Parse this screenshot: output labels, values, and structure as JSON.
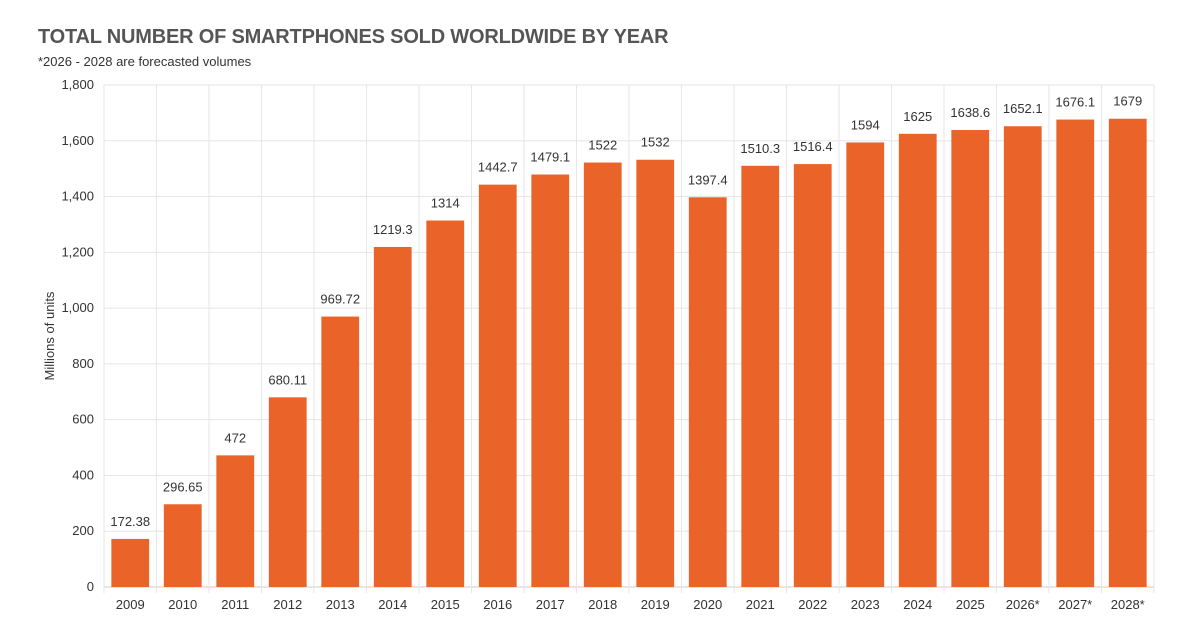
{
  "chart_data": {
    "type": "bar",
    "title": "TOTAL NUMBER OF SMARTPHONES SOLD WORLDWIDE BY YEAR",
    "subtitle": "*2026 - 2028 are forecasted volumes",
    "xlabel": "",
    "ylabel": "Millions of units",
    "ylim": [
      0,
      1800
    ],
    "yticks": [
      0,
      200,
      400,
      600,
      800,
      1000,
      1200,
      1400,
      1600,
      1800
    ],
    "ytick_labels": [
      "0",
      "200",
      "400",
      "600",
      "800",
      "1,000",
      "1,200",
      "1,400",
      "1,600",
      "1,800"
    ],
    "categories": [
      "2009",
      "2010",
      "2011",
      "2012",
      "2013",
      "2014",
      "2015",
      "2016",
      "2017",
      "2018",
      "2019",
      "2020",
      "2021",
      "2022",
      "2023",
      "2024",
      "2025",
      "2026*",
      "2027*",
      "2028*"
    ],
    "values": [
      172.38,
      296.65,
      472,
      680.11,
      969.72,
      1219.3,
      1314,
      1442.7,
      1479.1,
      1522,
      1532,
      1397.4,
      1510.3,
      1516.4,
      1594,
      1625,
      1638.6,
      1652.1,
      1676.1,
      1679
    ],
    "data_labels": [
      "172.38",
      "296.65",
      "472",
      "680.11",
      "969.72",
      "1219.3",
      "1314",
      "1442.7",
      "1479.1",
      "1522",
      "1532",
      "1397.4",
      "1510.3",
      "1516.4",
      "1594",
      "1625",
      "1638.6",
      "1652.1",
      "1676.1",
      "1679"
    ],
    "grid": true,
    "colors": {
      "bar": "#ea6329",
      "grid": "#e6e6e6",
      "axis": "#cccccc"
    }
  }
}
